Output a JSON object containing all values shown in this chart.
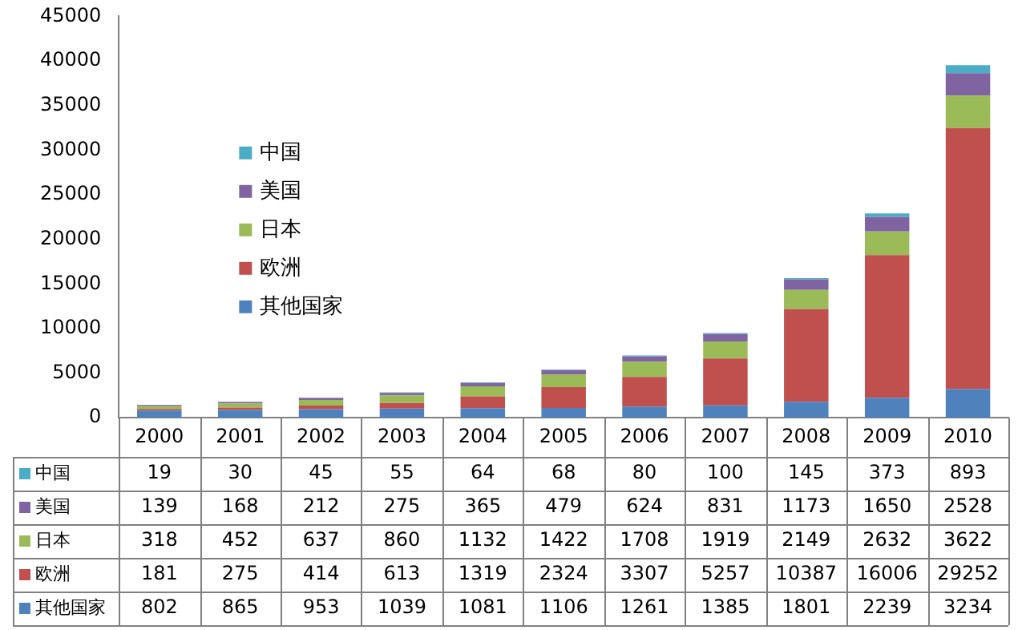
{
  "chart_data": {
    "type": "bar",
    "stacked": true,
    "categories": [
      "2000",
      "2001",
      "2002",
      "2003",
      "2004",
      "2005",
      "2006",
      "2007",
      "2008",
      "2009",
      "2010"
    ],
    "series": [
      {
        "name": "其他国家",
        "color": "#4f81bd",
        "values": [
          802,
          865,
          953,
          1039,
          1081,
          1106,
          1261,
          1385,
          1801,
          2239,
          3234
        ]
      },
      {
        "name": "欧洲",
        "color": "#c0504d",
        "values": [
          181,
          275,
          414,
          613,
          1319,
          2324,
          3307,
          5257,
          10387,
          16006,
          29252
        ]
      },
      {
        "name": "日本",
        "color": "#9bbb59",
        "values": [
          318,
          452,
          637,
          860,
          1132,
          1422,
          1708,
          1919,
          2149,
          2632,
          3622
        ]
      },
      {
        "name": "美国",
        "color": "#8064a2",
        "values": [
          139,
          168,
          212,
          275,
          365,
          479,
          624,
          831,
          1173,
          1650,
          2528
        ]
      },
      {
        "name": "中国",
        "color": "#4bacc6",
        "values": [
          19,
          30,
          45,
          55,
          64,
          68,
          80,
          100,
          145,
          373,
          893
        ]
      }
    ],
    "ylim": [
      0,
      45000
    ],
    "yticks": [
      0,
      5000,
      10000,
      15000,
      20000,
      25000,
      30000,
      35000,
      40000,
      45000
    ],
    "grid": false,
    "legend": "left",
    "data_labels": true
  }
}
